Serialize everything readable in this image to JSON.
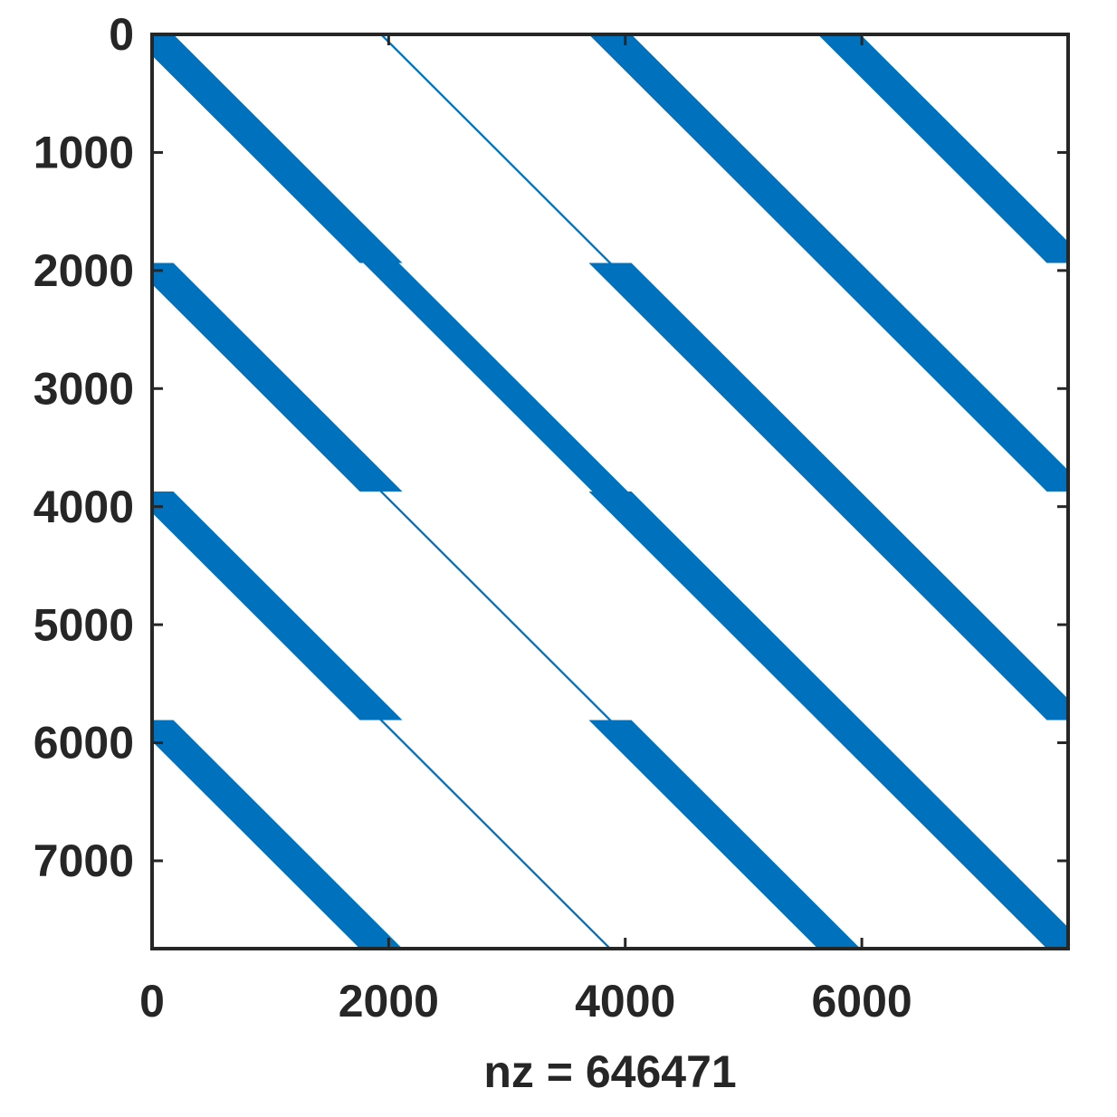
{
  "chart_data": {
    "type": "spy",
    "xlabel": "nz = 646471",
    "color": "#0072bd",
    "xlim": [
      0,
      7744
    ],
    "ylim": [
      0,
      7744
    ],
    "xticks": [
      0,
      2000,
      4000,
      6000
    ],
    "yticks": [
      0,
      1000,
      2000,
      3000,
      4000,
      5000,
      6000,
      7000
    ],
    "bands": [
      {
        "x": [
          0,
          1936
        ],
        "y": [
          0,
          1936
        ],
        "width": 360
      },
      {
        "x": [
          1936,
          3872
        ],
        "y": [
          0,
          1936
        ],
        "width": 25
      },
      {
        "x": [
          3872,
          5808
        ],
        "y": [
          0,
          1936
        ],
        "width": 360
      },
      {
        "x": [
          5808,
          7744
        ],
        "y": [
          0,
          1936
        ],
        "width": 360
      },
      {
        "x": [
          0,
          1936
        ],
        "y": [
          1936,
          3872
        ],
        "width": 360
      },
      {
        "x": [
          1936,
          3872
        ],
        "y": [
          1936,
          3872
        ],
        "width": 300
      },
      {
        "x": [
          3872,
          5808
        ],
        "y": [
          1936,
          3872
        ],
        "width": 360
      },
      {
        "x": [
          5808,
          7744
        ],
        "y": [
          1936,
          3872
        ],
        "width": 360
      },
      {
        "x": [
          0,
          1936
        ],
        "y": [
          3872,
          5808
        ],
        "width": 360
      },
      {
        "x": [
          1936,
          3872
        ],
        "y": [
          3872,
          5808
        ],
        "width": 25
      },
      {
        "x": [
          3872,
          5808
        ],
        "y": [
          3872,
          5808
        ],
        "width": 360
      },
      {
        "x": [
          5808,
          7744
        ],
        "y": [
          3872,
          5808
        ],
        "width": 360
      },
      {
        "x": [
          0,
          1936
        ],
        "y": [
          5808,
          7744
        ],
        "width": 360
      },
      {
        "x": [
          1936,
          3872
        ],
        "y": [
          5808,
          7744
        ],
        "width": 25
      },
      {
        "x": [
          3872,
          5808
        ],
        "y": [
          5808,
          7744
        ],
        "width": 360
      },
      {
        "x": [
          5808,
          7744
        ],
        "y": [
          5808,
          7744
        ],
        "width": 360
      }
    ]
  }
}
